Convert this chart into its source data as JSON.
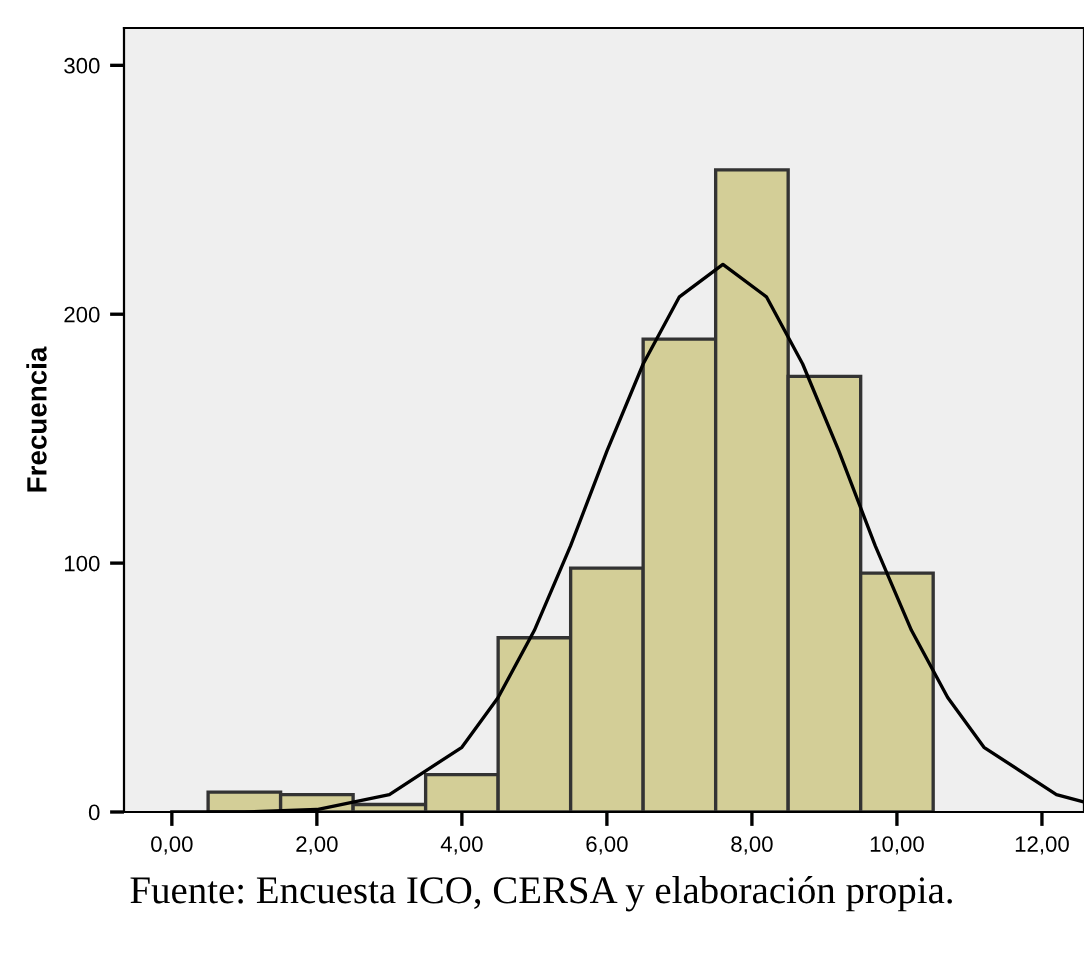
{
  "chart_data": {
    "type": "histogram",
    "ylabel": "Frecuencia",
    "bins": [
      0.5,
      1.5,
      2.5,
      3.5,
      4.5,
      5.5,
      6.5,
      7.5,
      8.5,
      9.5,
      10.5
    ],
    "values": [
      8,
      7,
      3,
      15,
      70,
      98,
      190,
      258,
      175,
      96
    ],
    "color": "#d3ce97",
    "series": [
      {
        "type": "line",
        "color": "#000000",
        "x": [
          0,
          1,
          2,
          3,
          4,
          4.5,
          5,
          5.5,
          6,
          6.5,
          7,
          7.6,
          8.2,
          8.7,
          9.2,
          9.7,
          10.2,
          10.7,
          11.2,
          12.2,
          12.58
        ],
        "values": [
          0,
          0,
          1,
          7,
          26,
          46,
          73,
          107,
          145,
          180,
          207,
          220,
          207,
          180,
          145,
          107,
          73,
          46,
          26,
          7,
          4
        ]
      }
    ],
    "xlim": [
      -0.66,
      12.58
    ],
    "ylim": [
      0,
      315
    ],
    "xticks": [
      {
        "value": 0,
        "label": "0,00"
      },
      {
        "value": 2,
        "label": "2,00"
      },
      {
        "value": 4,
        "label": "4,00"
      },
      {
        "value": 6,
        "label": "6,00"
      },
      {
        "value": 8,
        "label": "8,00"
      },
      {
        "value": 10,
        "label": "10,00"
      },
      {
        "value": 12,
        "label": "12,00"
      }
    ],
    "yticks": [
      0,
      100,
      200,
      300
    ],
    "grid": false,
    "annotations": [
      "Fuente: Encuesta ICO, CERSA y elaboración propia."
    ]
  }
}
